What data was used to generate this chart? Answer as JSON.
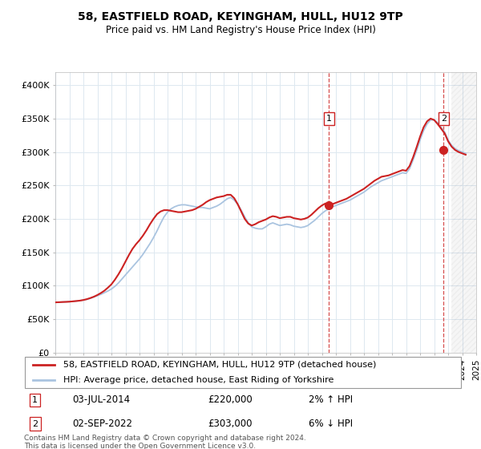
{
  "title": "58, EASTFIELD ROAD, KEYINGHAM, HULL, HU12 9TP",
  "subtitle": "Price paid vs. HM Land Registry's House Price Index (HPI)",
  "ylim": [
    0,
    420000
  ],
  "yticks": [
    0,
    50000,
    100000,
    150000,
    200000,
    250000,
    300000,
    350000,
    400000
  ],
  "ytick_labels": [
    "£0",
    "£50K",
    "£100K",
    "£150K",
    "£200K",
    "£250K",
    "£300K",
    "£350K",
    "£400K"
  ],
  "background_color": "#ffffff",
  "grid_color": "#dde8f0",
  "hpi_color": "#aac4e0",
  "price_color": "#cc2222",
  "sale1_date": "03-JUL-2014",
  "sale1_price": 220000,
  "sale1_pct": "2%",
  "sale1_dir": "↑",
  "sale2_date": "02-SEP-2022",
  "sale2_price": 303000,
  "sale2_dir": "↓",
  "sale2_pct": "6%",
  "legend_label1": "58, EASTFIELD ROAD, KEYINGHAM, HULL, HU12 9TP (detached house)",
  "legend_label2": "HPI: Average price, detached house, East Riding of Yorkshire",
  "footer": "Contains HM Land Registry data © Crown copyright and database right 2024.\nThis data is licensed under the Open Government Licence v3.0.",
  "sale1_x": 2014.5,
  "sale2_x": 2022.67,
  "xlim_start": 1995,
  "xlim_end": 2025,
  "hatch_start": 2023.25,
  "hpi_x": [
    1995.0,
    1995.25,
    1995.5,
    1995.75,
    1996.0,
    1996.25,
    1996.5,
    1996.75,
    1997.0,
    1997.25,
    1997.5,
    1997.75,
    1998.0,
    1998.25,
    1998.5,
    1998.75,
    1999.0,
    1999.25,
    1999.5,
    1999.75,
    2000.0,
    2000.25,
    2000.5,
    2000.75,
    2001.0,
    2001.25,
    2001.5,
    2001.75,
    2002.0,
    2002.25,
    2002.5,
    2002.75,
    2003.0,
    2003.25,
    2003.5,
    2003.75,
    2004.0,
    2004.25,
    2004.5,
    2004.75,
    2005.0,
    2005.25,
    2005.5,
    2005.75,
    2006.0,
    2006.25,
    2006.5,
    2006.75,
    2007.0,
    2007.25,
    2007.5,
    2007.75,
    2008.0,
    2008.25,
    2008.5,
    2008.75,
    2009.0,
    2009.25,
    2009.5,
    2009.75,
    2010.0,
    2010.25,
    2010.5,
    2010.75,
    2011.0,
    2011.25,
    2011.5,
    2011.75,
    2012.0,
    2012.25,
    2012.5,
    2012.75,
    2013.0,
    2013.25,
    2013.5,
    2013.75,
    2014.0,
    2014.25,
    2014.5,
    2014.75,
    2015.0,
    2015.25,
    2015.5,
    2015.75,
    2016.0,
    2016.25,
    2016.5,
    2016.75,
    2017.0,
    2017.25,
    2017.5,
    2017.75,
    2018.0,
    2018.25,
    2018.5,
    2018.75,
    2019.0,
    2019.25,
    2019.5,
    2019.75,
    2020.0,
    2020.25,
    2020.5,
    2020.75,
    2021.0,
    2021.25,
    2021.5,
    2021.75,
    2022.0,
    2022.25,
    2022.5,
    2022.75,
    2023.0,
    2023.25,
    2023.5,
    2023.75,
    2024.0,
    2024.25
  ],
  "hpi_y": [
    75000,
    75200,
    75500,
    75800,
    76000,
    76500,
    77000,
    77500,
    78500,
    79500,
    81000,
    83000,
    85000,
    87000,
    89500,
    92000,
    95000,
    99000,
    104000,
    110000,
    116000,
    122000,
    128000,
    134000,
    140000,
    147000,
    155000,
    163000,
    172000,
    182000,
    193000,
    203000,
    210000,
    215000,
    218000,
    220000,
    221000,
    221000,
    220000,
    219000,
    218000,
    217000,
    217000,
    216000,
    215000,
    217000,
    219000,
    222000,
    226000,
    230000,
    232000,
    228000,
    222000,
    213000,
    203000,
    194000,
    188000,
    186000,
    185000,
    185000,
    188000,
    192000,
    194000,
    192000,
    190000,
    191000,
    192000,
    191000,
    189000,
    188000,
    187000,
    188000,
    190000,
    194000,
    198000,
    203000,
    208000,
    212000,
    215000,
    218000,
    220000,
    222000,
    224000,
    226000,
    228000,
    231000,
    234000,
    237000,
    240000,
    244000,
    248000,
    251000,
    254000,
    257000,
    259000,
    261000,
    263000,
    265000,
    267000,
    269000,
    268000,
    275000,
    288000,
    302000,
    318000,
    332000,
    342000,
    348000,
    348000,
    344000,
    337000,
    330000,
    318000,
    310000,
    305000,
    302000,
    300000,
    298000
  ],
  "price_x": [
    1995.0,
    1995.25,
    1995.5,
    1995.75,
    1996.0,
    1996.25,
    1996.5,
    1996.75,
    1997.0,
    1997.25,
    1997.5,
    1997.75,
    1998.0,
    1998.25,
    1998.5,
    1998.75,
    1999.0,
    1999.25,
    1999.5,
    1999.75,
    2000.0,
    2000.25,
    2000.5,
    2000.75,
    2001.0,
    2001.25,
    2001.5,
    2001.75,
    2002.0,
    2002.25,
    2002.5,
    2002.75,
    2003.0,
    2003.25,
    2003.5,
    2003.75,
    2004.0,
    2004.25,
    2004.5,
    2004.75,
    2005.0,
    2005.25,
    2005.5,
    2005.75,
    2006.0,
    2006.25,
    2006.5,
    2006.75,
    2007.0,
    2007.25,
    2007.5,
    2007.75,
    2008.0,
    2008.25,
    2008.5,
    2008.75,
    2009.0,
    2009.25,
    2009.5,
    2009.75,
    2010.0,
    2010.25,
    2010.5,
    2010.75,
    2011.0,
    2011.25,
    2011.5,
    2011.75,
    2012.0,
    2012.25,
    2012.5,
    2012.75,
    2013.0,
    2013.25,
    2013.5,
    2013.75,
    2014.0,
    2014.25,
    2014.5,
    2014.75,
    2015.0,
    2015.25,
    2015.5,
    2015.75,
    2016.0,
    2016.25,
    2016.5,
    2016.75,
    2017.0,
    2017.25,
    2017.5,
    2017.75,
    2018.0,
    2018.25,
    2018.5,
    2018.75,
    2019.0,
    2019.25,
    2019.5,
    2019.75,
    2020.0,
    2020.25,
    2020.5,
    2020.75,
    2021.0,
    2021.25,
    2021.5,
    2021.75,
    2022.0,
    2022.25,
    2022.5,
    2022.75,
    2023.0,
    2023.25,
    2023.5,
    2023.75,
    2024.0,
    2024.25
  ],
  "price_y": [
    75000,
    75200,
    75500,
    75700,
    76000,
    76500,
    77000,
    77600,
    78500,
    79800,
    81500,
    83500,
    86000,
    89000,
    92500,
    97000,
    102000,
    109000,
    117000,
    126000,
    136000,
    146000,
    155000,
    162000,
    168000,
    175000,
    183000,
    192000,
    200000,
    207000,
    211000,
    213000,
    213000,
    212000,
    211000,
    210000,
    210000,
    211000,
    212000,
    213000,
    215000,
    218000,
    221000,
    225000,
    228000,
    230000,
    232000,
    233000,
    234000,
    236000,
    236000,
    231000,
    222000,
    211000,
    200000,
    193000,
    190000,
    192000,
    195000,
    197000,
    199000,
    202000,
    204000,
    203000,
    201000,
    202000,
    203000,
    203000,
    201000,
    200000,
    199000,
    200000,
    202000,
    206000,
    211000,
    216000,
    220000,
    223000,
    220000,
    222000,
    224000,
    226000,
    228000,
    230000,
    233000,
    236000,
    239000,
    242000,
    245000,
    249000,
    253000,
    257000,
    260000,
    263000,
    264000,
    265000,
    267000,
    269000,
    271000,
    273000,
    272000,
    279000,
    292000,
    307000,
    323000,
    337000,
    346000,
    350000,
    348000,
    342000,
    335000,
    328000,
    316000,
    308000,
    303000,
    300000,
    298000,
    296000
  ]
}
